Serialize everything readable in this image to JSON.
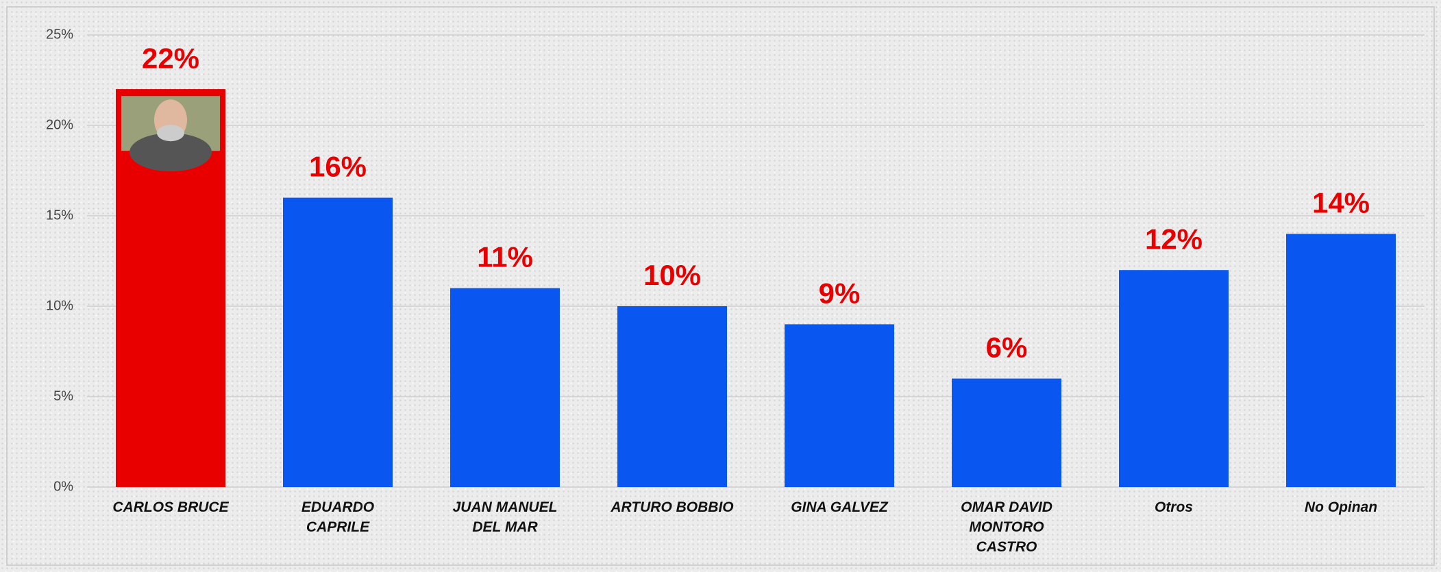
{
  "chart_data": {
    "type": "bar",
    "categories": [
      "CARLOS BRUCE",
      "EDUARDO CAPRILE",
      "JUAN MANUEL DEL MAR",
      "ARTURO BOBBIO",
      "GINA GALVEZ",
      "OMAR DAVID MONTORO CASTRO",
      "Otros",
      "No Opinan"
    ],
    "values": [
      22,
      16,
      11,
      10,
      9,
      6,
      12,
      14
    ],
    "value_labels": [
      "22%",
      "16%",
      "11%",
      "10%",
      "9%",
      "6%",
      "12%",
      "14%"
    ],
    "colors": [
      "#e80000",
      "#0a56f0",
      "#0a56f0",
      "#0a56f0",
      "#0a56f0",
      "#0a56f0",
      "#0a56f0",
      "#0a56f0"
    ],
    "value_label_color": "#e80000",
    "ylim": [
      0,
      25
    ],
    "yticks": [
      {
        "value": 0,
        "label": "0%"
      },
      {
        "value": 5,
        "label": "5%"
      },
      {
        "value": 10,
        "label": "10%"
      },
      {
        "value": 15,
        "label": "15%"
      },
      {
        "value": 20,
        "label": "20%"
      },
      {
        "value": 25,
        "label": "25%"
      }
    ],
    "grid": true
  }
}
